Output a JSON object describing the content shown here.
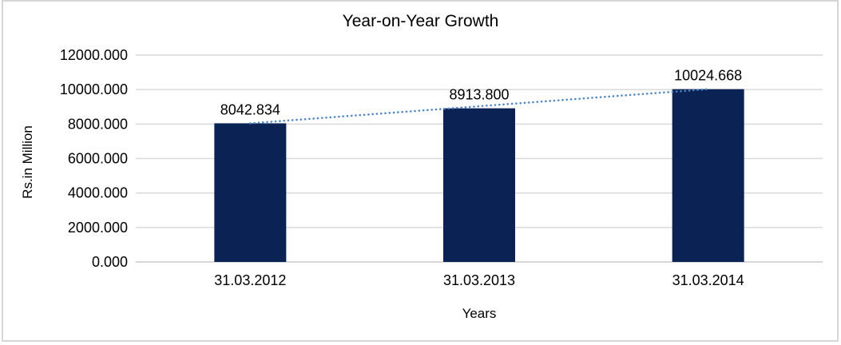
{
  "window": {
    "background": "#ffffff",
    "frame_border_color": "#d6d6d6"
  },
  "chart_data": {
    "type": "bar",
    "title": "Year-on-Year Growth",
    "xlabel": "Years",
    "ylabel": "Rs.in Million",
    "categories": [
      "31.03.2012",
      "31.03.2013",
      "31.03.2014"
    ],
    "values": [
      8042.834,
      8913.8,
      10024.668
    ],
    "data_labels": [
      "8042.834",
      "8913.800",
      "10024.668"
    ],
    "ylim": [
      0,
      12000
    ],
    "ytick_step": 2000,
    "ytick_labels": [
      "0.000",
      "2000.000",
      "4000.000",
      "6000.000",
      "8000.000",
      "10000.000",
      "12000.000"
    ],
    "grid": true,
    "legend": "none",
    "trendline": {
      "type": "linear",
      "style": "dotted",
      "spans": "first-to-last-bar"
    },
    "colors": {
      "bar": "#0b2354",
      "gridline": "#d9d9d9",
      "axis_line": "#c9c9c9",
      "trendline": "#4e87c7",
      "text": "#000000"
    }
  }
}
